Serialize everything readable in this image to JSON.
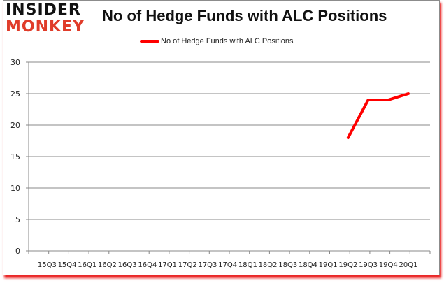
{
  "logo": {
    "line1": "INSIDER",
    "line2": "MONKEY"
  },
  "colors": {
    "series": "#ff0000",
    "grid": "#888888",
    "logo_accent": "#e03c2a"
  },
  "chart_data": {
    "type": "line",
    "title": "No of Hedge Funds with ALC Positions",
    "xlabel": "",
    "ylabel": "",
    "ylim": [
      0,
      30
    ],
    "yticks": [
      0,
      5,
      10,
      15,
      20,
      25,
      30
    ],
    "grid": true,
    "legend_position": "top",
    "categories": [
      "15Q3",
      "15Q4",
      "16Q1",
      "16Q2",
      "16Q3",
      "16Q4",
      "17Q1",
      "17Q2",
      "17Q3",
      "17Q4",
      "18Q1",
      "18Q2",
      "18Q3",
      "18Q4",
      "19Q1",
      "19Q2",
      "19Q3",
      "19Q4",
      "20Q1"
    ],
    "series": [
      {
        "name": "No of Hedge Funds with ALC Positions",
        "values": [
          null,
          null,
          null,
          null,
          null,
          null,
          null,
          null,
          null,
          null,
          null,
          null,
          null,
          null,
          null,
          18,
          24,
          24,
          25
        ]
      }
    ]
  }
}
